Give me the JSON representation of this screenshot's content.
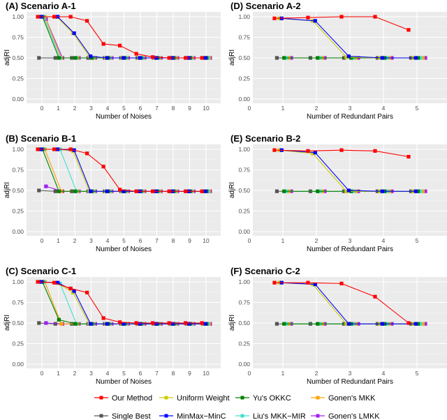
{
  "legend": [
    "Our Method",
    "Uniform Weight",
    "Yu's OKKC",
    "Gonen's MKK",
    "Single Best",
    "MinMax−MinC",
    "Liu's MKK−MIR",
    "Gonen's LMKK"
  ],
  "colors": {
    "Our Method": "#ff0000",
    "Single Best": "#555555",
    "Uniform Weight": "#cccc00",
    "MinMax−MinC": "#0000ff",
    "Yu's OKKC": "#008000",
    "Liu's MKK−MIR": "#40e0d0",
    "Gonen's MKK": "#ffa500",
    "Gonen's LMKK": "#a020f0"
  },
  "chart_data": [
    {
      "type": "line",
      "title": "(A) Scenario A-1",
      "xlabel": "Number of Noises",
      "ylabel": "adjRI",
      "x": [
        0,
        1,
        2,
        3,
        4,
        5,
        6,
        7,
        8,
        9,
        10
      ],
      "xticks": [
        "0",
        "1",
        "2",
        "3",
        "4",
        "5",
        "6",
        "7",
        "8",
        "9",
        "10"
      ],
      "yticks": [
        "0.00",
        "0.25",
        "0.50",
        "0.75",
        "1.00"
      ],
      "ylim": [
        0,
        1
      ],
      "series": [
        {
          "name": "Our Method",
          "values": [
            1,
            1,
            1,
            0.95,
            0.67,
            0.65,
            0.55,
            0.51,
            0.5,
            0.5,
            0.5
          ]
        },
        {
          "name": "Single Best",
          "values": [
            0.5,
            0.5,
            0.5,
            0.5,
            0.5,
            0.5,
            0.5,
            0.5,
            0.5,
            0.5,
            0.5
          ]
        },
        {
          "name": "Uniform Weight",
          "values": [
            1,
            1,
            0.8,
            0.52,
            0.5,
            0.5,
            0.5,
            0.5,
            0.5,
            0.5,
            0.5
          ]
        },
        {
          "name": "MinMax−MinC",
          "values": [
            1,
            1,
            0.8,
            0.52,
            0.5,
            0.5,
            0.5,
            0.5,
            0.5,
            0.5,
            0.5
          ]
        },
        {
          "name": "Yu's OKKC",
          "values": [
            1,
            0.5,
            0.5,
            0.5,
            0.5,
            0.5,
            0.5,
            0.5,
            0.5,
            0.5,
            0.5
          ]
        },
        {
          "name": "Liu's MKK−MIR",
          "values": [
            1,
            0.5,
            0.5,
            0.5,
            0.5,
            0.5,
            0.5,
            0.5,
            0.5,
            0.5,
            0.5
          ]
        },
        {
          "name": "Gonen's MKK",
          "values": [
            1,
            0.5,
            0.5,
            0.5,
            0.5,
            0.5,
            0.5,
            0.5,
            0.5,
            0.5,
            0.5
          ]
        },
        {
          "name": "Gonen's LMKK",
          "values": [
            0.97,
            0.5,
            0.5,
            0.5,
            0.5,
            0.5,
            0.5,
            0.5,
            0.5,
            0.5,
            0.5
          ]
        }
      ]
    },
    {
      "type": "line",
      "title": "(D) Scenario A-2",
      "xlabel": "Number of Redundant Pairs",
      "ylabel": "adjRI",
      "x": [
        1,
        2,
        3,
        4,
        5
      ],
      "xticks": [
        "0",
        "1",
        "2",
        "3",
        "4",
        "5"
      ],
      "yticks": [
        "0.00",
        "0.25",
        "0.50",
        "0.75",
        "1.00"
      ],
      "ylim": [
        0,
        1
      ],
      "series": [
        {
          "name": "Our Method",
          "values": [
            0.98,
            0.99,
            1,
            1,
            0.84
          ]
        },
        {
          "name": "Single Best",
          "values": [
            0.5,
            0.5,
            0.5,
            0.5,
            0.5
          ]
        },
        {
          "name": "Uniform Weight",
          "values": [
            0.98,
            0.95,
            0.51,
            0.5,
            0.5
          ]
        },
        {
          "name": "MinMax−MinC",
          "values": [
            0.98,
            0.95,
            0.52,
            0.5,
            0.5
          ]
        },
        {
          "name": "Yu's OKKC",
          "values": [
            0.5,
            0.5,
            0.5,
            0.5,
            0.5
          ]
        },
        {
          "name": "Liu's MKK−MIR",
          "values": [
            0.5,
            0.5,
            0.5,
            0.5,
            0.5
          ]
        },
        {
          "name": "Gonen's MKK",
          "values": [
            0.5,
            0.5,
            0.5,
            0.5,
            0.5
          ]
        },
        {
          "name": "Gonen's LMKK",
          "values": [
            0.5,
            0.5,
            0.5,
            0.5,
            0.5
          ]
        }
      ]
    },
    {
      "type": "line",
      "title": "(B) Scenario B-1",
      "xlabel": "Number of Noises",
      "ylabel": "adjRI",
      "x": [
        0,
        1,
        2,
        3,
        4,
        5,
        6,
        7,
        8,
        9,
        10
      ],
      "xticks": [
        "0",
        "1",
        "2",
        "3",
        "4",
        "5",
        "6",
        "7",
        "8",
        "9",
        "10"
      ],
      "yticks": [
        "0.00",
        "0.25",
        "0.50",
        "0.75",
        "1.00"
      ],
      "ylim": [
        0,
        1
      ],
      "series": [
        {
          "name": "Our Method",
          "values": [
            1,
            1,
            1,
            0.95,
            0.79,
            0.51,
            0.49,
            0.49,
            0.49,
            0.49,
            0.49
          ]
        },
        {
          "name": "Single Best",
          "values": [
            0.5,
            0.49,
            0.49,
            0.49,
            0.49,
            0.49,
            0.49,
            0.49,
            0.49,
            0.49,
            0.49
          ]
        },
        {
          "name": "Uniform Weight",
          "values": [
            1,
            1,
            0.98,
            0.49,
            0.49,
            0.49,
            0.49,
            0.49,
            0.49,
            0.49,
            0.49
          ]
        },
        {
          "name": "MinMax−MinC",
          "values": [
            1,
            1,
            0.99,
            0.49,
            0.49,
            0.49,
            0.49,
            0.49,
            0.49,
            0.49,
            0.49
          ]
        },
        {
          "name": "Yu's OKKC",
          "values": [
            1,
            0.49,
            0.49,
            0.49,
            0.49,
            0.49,
            0.49,
            0.49,
            0.49,
            0.49,
            0.49
          ]
        },
        {
          "name": "Liu's MKK−MIR",
          "values": [
            1,
            1,
            0.49,
            0.49,
            0.49,
            0.49,
            0.49,
            0.49,
            0.49,
            0.49,
            0.49
          ]
        },
        {
          "name": "Gonen's MKK",
          "values": [
            1,
            0.49,
            0.49,
            0.49,
            0.49,
            0.49,
            0.49,
            0.49,
            0.49,
            0.49,
            0.49
          ]
        },
        {
          "name": "Gonen's LMKK",
          "values": [
            0.55,
            0.49,
            0.49,
            0.49,
            0.49,
            0.49,
            0.49,
            0.49,
            0.49,
            0.49,
            0.49
          ]
        }
      ]
    },
    {
      "type": "line",
      "title": "(E) Scenario B-2",
      "xlabel": "Number of Redundant Pairs",
      "ylabel": "adjRI",
      "x": [
        1,
        2,
        3,
        4,
        5
      ],
      "xticks": [
        "0",
        "1",
        "2",
        "3",
        "4",
        "5"
      ],
      "yticks": [
        "0.00",
        "0.25",
        "0.50",
        "0.75",
        "1.00"
      ],
      "ylim": [
        0,
        1
      ],
      "series": [
        {
          "name": "Our Method",
          "values": [
            0.99,
            0.98,
            0.99,
            0.98,
            0.91
          ]
        },
        {
          "name": "Single Best",
          "values": [
            0.49,
            0.49,
            0.49,
            0.49,
            0.49
          ]
        },
        {
          "name": "Uniform Weight",
          "values": [
            0.99,
            0.95,
            0.49,
            0.49,
            0.49
          ]
        },
        {
          "name": "MinMax−MinC",
          "values": [
            0.99,
            0.96,
            0.5,
            0.49,
            0.49
          ]
        },
        {
          "name": "Yu's OKKC",
          "values": [
            0.49,
            0.49,
            0.49,
            0.49,
            0.49
          ]
        },
        {
          "name": "Liu's MKK−MIR",
          "values": [
            0.49,
            0.49,
            0.49,
            0.49,
            0.49
          ]
        },
        {
          "name": "Gonen's MKK",
          "values": [
            0.49,
            0.49,
            0.49,
            0.49,
            0.49
          ]
        },
        {
          "name": "Gonen's LMKK",
          "values": [
            0.49,
            0.49,
            0.49,
            0.49,
            0.49
          ]
        }
      ]
    },
    {
      "type": "line",
      "title": "(C) Scenario C-1",
      "xlabel": "Number of Noises",
      "ylabel": "adjRI",
      "x": [
        0,
        1,
        2,
        3,
        4,
        5,
        6,
        7,
        8,
        9,
        10
      ],
      "xticks": [
        "0",
        "1",
        "2",
        "3",
        "4",
        "5",
        "6",
        "7",
        "8",
        "9",
        "10"
      ],
      "yticks": [
        "0.00",
        "0.25",
        "0.50",
        "0.75",
        "1.00"
      ],
      "ylim": [
        0,
        1
      ],
      "series": [
        {
          "name": "Our Method",
          "values": [
            1,
            0.99,
            0.92,
            0.87,
            0.56,
            0.51,
            0.5,
            0.5,
            0.5,
            0.5,
            0.5
          ]
        },
        {
          "name": "Single Best",
          "values": [
            0.5,
            0.49,
            0.49,
            0.49,
            0.49,
            0.49,
            0.49,
            0.49,
            0.49,
            0.49,
            0.49
          ]
        },
        {
          "name": "Uniform Weight",
          "values": [
            1,
            0.99,
            0.87,
            0.49,
            0.49,
            0.49,
            0.49,
            0.49,
            0.49,
            0.49,
            0.49
          ]
        },
        {
          "name": "MinMax−MinC",
          "values": [
            1,
            0.99,
            0.89,
            0.49,
            0.49,
            0.49,
            0.49,
            0.49,
            0.49,
            0.49,
            0.49
          ]
        },
        {
          "name": "Yu's OKKC",
          "values": [
            1,
            0.54,
            0.49,
            0.49,
            0.49,
            0.49,
            0.49,
            0.49,
            0.49,
            0.49,
            0.49
          ]
        },
        {
          "name": "Liu's MKK−MIR",
          "values": [
            1,
            0.98,
            0.49,
            0.49,
            0.49,
            0.49,
            0.49,
            0.49,
            0.49,
            0.49,
            0.49
          ]
        },
        {
          "name": "Gonen's MKK",
          "values": [
            1,
            0.49,
            0.49,
            0.49,
            0.49,
            0.49,
            0.49,
            0.49,
            0.49,
            0.49,
            0.49
          ]
        },
        {
          "name": "Gonen's LMKK",
          "values": [
            0.5,
            0.49,
            0.49,
            0.49,
            0.49,
            0.49,
            0.49,
            0.49,
            0.49,
            0.49,
            0.49
          ]
        }
      ]
    },
    {
      "type": "line",
      "title": "(F) Scenario C-2",
      "xlabel": "Number of Redundant Pairs",
      "ylabel": "adjRI",
      "x": [
        1,
        2,
        3,
        4,
        5
      ],
      "xticks": [
        "0",
        "1",
        "2",
        "3",
        "4",
        "5"
      ],
      "yticks": [
        "0.00",
        "0.25",
        "0.50",
        "0.75",
        "1.00"
      ],
      "ylim": [
        0,
        1
      ],
      "series": [
        {
          "name": "Our Method",
          "values": [
            0.99,
            0.99,
            0.98,
            0.82,
            0.5
          ]
        },
        {
          "name": "Single Best",
          "values": [
            0.49,
            0.49,
            0.49,
            0.49,
            0.49
          ]
        },
        {
          "name": "Uniform Weight",
          "values": [
            0.99,
            0.97,
            0.49,
            0.49,
            0.49
          ]
        },
        {
          "name": "MinMax−MinC",
          "values": [
            0.99,
            0.97,
            0.49,
            0.49,
            0.49
          ]
        },
        {
          "name": "Yu's OKKC",
          "values": [
            0.49,
            0.49,
            0.49,
            0.49,
            0.49
          ]
        },
        {
          "name": "Liu's MKK−MIR",
          "values": [
            0.49,
            0.49,
            0.49,
            0.49,
            0.49
          ]
        },
        {
          "name": "Gonen's MKK",
          "values": [
            0.49,
            0.49,
            0.49,
            0.49,
            0.49
          ]
        },
        {
          "name": "Gonen's LMKK",
          "values": [
            0.49,
            0.49,
            0.49,
            0.49,
            0.49
          ]
        }
      ]
    }
  ]
}
